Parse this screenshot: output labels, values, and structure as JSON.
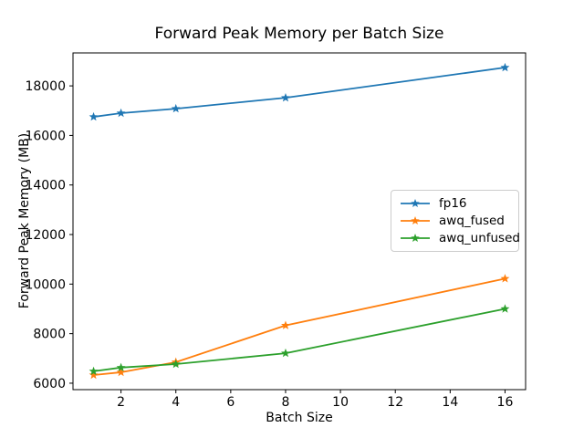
{
  "figure": {
    "background": "#ffffff",
    "spine_color": "#000000",
    "legend_border_color": "#cccccc"
  },
  "chart_data": {
    "type": "line",
    "title": "Forward Peak Memory per Batch Size",
    "xlabel": "Batch Size",
    "ylabel": "Forward Peak Memory (MB)",
    "x": [
      1,
      2,
      4,
      8,
      16
    ],
    "series": [
      {
        "name": "fp16",
        "color": "#1f77b4",
        "marker": "star",
        "values": [
          16750,
          16900,
          17080,
          17520,
          18740
        ]
      },
      {
        "name": "awq_fused",
        "color": "#ff7f0e",
        "marker": "star",
        "values": [
          6330,
          6440,
          6850,
          8330,
          10220
        ]
      },
      {
        "name": "awq_unfused",
        "color": "#2ca02c",
        "marker": "star",
        "values": [
          6480,
          6630,
          6770,
          7210,
          9000
        ]
      }
    ],
    "xticks": [
      2,
      4,
      6,
      8,
      10,
      12,
      14,
      16
    ],
    "yticks": [
      6000,
      8000,
      10000,
      12000,
      14000,
      16000,
      18000
    ],
    "xlim": [
      0.25,
      16.75
    ],
    "ylim": [
      5740,
      19330
    ],
    "grid": false,
    "legend_position": "center-right",
    "legend_entries": [
      "fp16",
      "awq_fused",
      "awq_unfused"
    ]
  }
}
